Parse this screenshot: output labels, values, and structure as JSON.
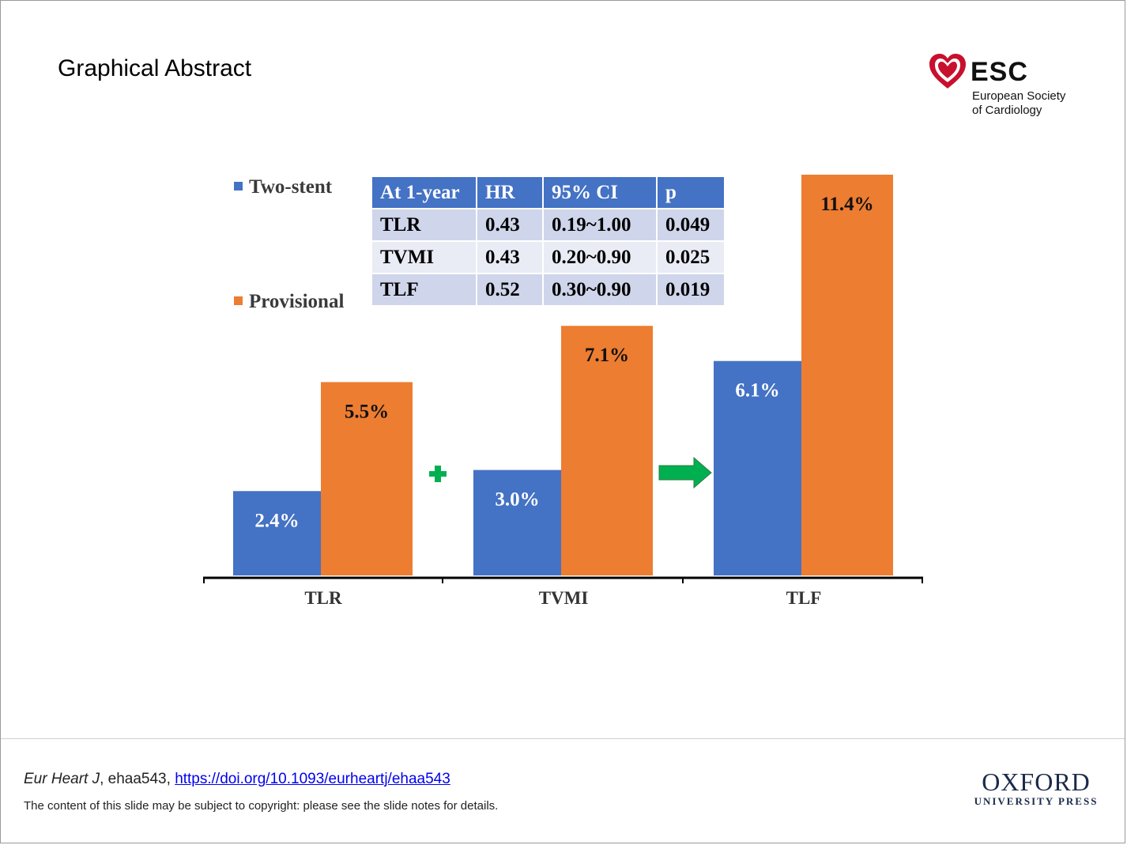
{
  "slide": {
    "title": "Graphical Abstract"
  },
  "esc_logo": {
    "name": "ESC",
    "line1": "European Society",
    "line2": "of Cardiology"
  },
  "colors": {
    "two_stent": "#4472c4",
    "provisional": "#ed7d31",
    "table_header": "#4472c4",
    "arrow": "#00b050",
    "plus": "#00b050"
  },
  "chart_data": {
    "type": "bar",
    "categories": [
      "TLR",
      "TVMI",
      "TLF"
    ],
    "series": [
      {
        "name": "Two-stent",
        "values": [
          2.4,
          3.0,
          6.1
        ],
        "labels": [
          "2.4%",
          "3.0%",
          "6.1%"
        ]
      },
      {
        "name": "Provisional",
        "values": [
          5.5,
          7.1,
          11.4
        ],
        "labels": [
          "5.5%",
          "7.1%",
          "11.4%"
        ]
      }
    ],
    "ylim": [
      0,
      11.4
    ],
    "grid": false,
    "legend_position": "top-left",
    "annotations": {
      "plus_between": [
        "TLR",
        "TVMI"
      ],
      "arrow_between": [
        "TVMI",
        "TLF"
      ]
    }
  },
  "table": {
    "headers": [
      "At 1-year",
      "HR",
      "95% CI",
      "p"
    ],
    "rows": [
      [
        "TLR",
        "0.43",
        "0.19~1.00",
        "0.049"
      ],
      [
        "TVMI",
        "0.43",
        "0.20~0.90",
        "0.025"
      ],
      [
        "TLF",
        "0.52",
        "0.30~0.90",
        "0.019"
      ]
    ]
  },
  "footer": {
    "journal": "Eur Heart J",
    "article_id": ", ehaa543, ",
    "doi": "https://doi.org/10.1093/eurheartj/ehaa543",
    "copyright": "The content of this slide may be subject to copyright: please see the slide notes for details."
  },
  "oup_logo": {
    "main": "OXFORD",
    "sub": "UNIVERSITY PRESS"
  }
}
